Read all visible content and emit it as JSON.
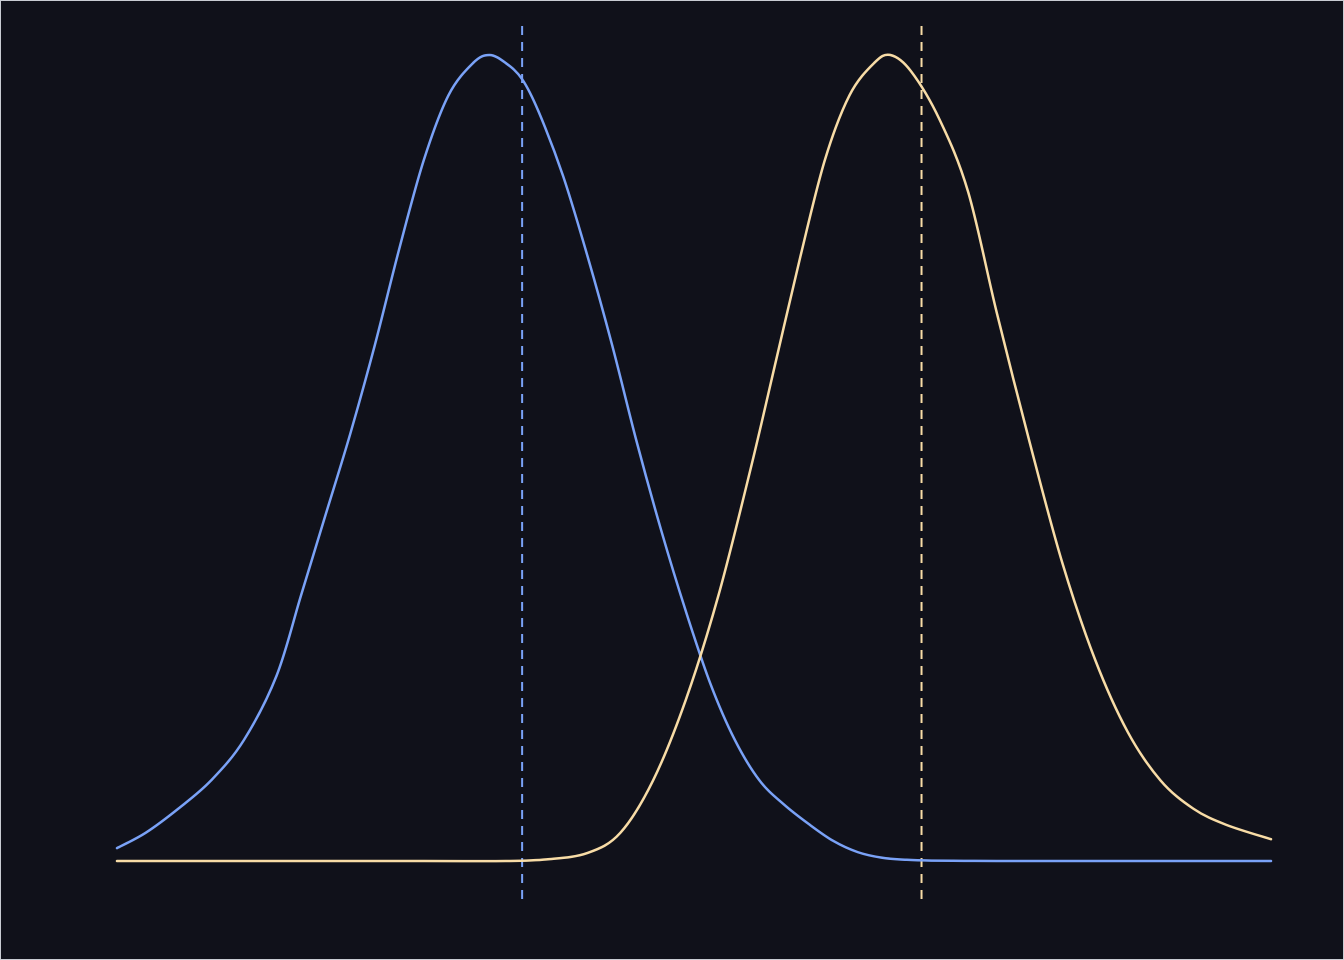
{
  "chart_data": {
    "type": "line",
    "background": "#10111a",
    "grid": false,
    "xlim": [
      -4.75,
      9.35
    ],
    "ylim": [
      0,
      1
    ],
    "series": [
      {
        "color": "#7aa2f7",
        "x": [
          -4.75,
          -4.4,
          -4.0,
          -3.6,
          -3.2,
          -2.8,
          -2.5,
          -2.2,
          -1.9,
          -1.6,
          -1.3,
          -1.0,
          -0.7,
          -0.4,
          -0.2,
          0.0,
          0.2,
          0.4,
          0.7,
          1.0,
          1.3,
          1.6,
          1.9,
          2.2,
          2.5,
          2.8,
          3.1,
          3.4,
          3.7,
          4.0,
          4.3,
          4.6,
          4.9,
          5.2,
          5.6,
          6.0,
          6.5,
          7.0,
          7.5,
          8.0,
          8.5,
          9.35
        ],
        "y": [
          0.016,
          0.035,
          0.065,
          0.1,
          0.15,
          0.23,
          0.33,
          0.43,
          0.53,
          0.64,
          0.76,
          0.87,
          0.95,
          0.99,
          1.0,
          0.99,
          0.97,
          0.93,
          0.85,
          0.75,
          0.64,
          0.52,
          0.41,
          0.31,
          0.22,
          0.15,
          0.1,
          0.07,
          0.046,
          0.025,
          0.011,
          0.004,
          0.0015,
          0.0005,
          0.0002,
          0.0,
          0.0,
          0.0,
          0.0,
          0.0,
          0.0,
          0.0
        ]
      },
      {
        "color": "#f8dca6",
        "x": [
          -4.75,
          -3.0,
          -1.0,
          0.0,
          0.5,
          1.0,
          1.4,
          1.8,
          2.2,
          2.6,
          3.0,
          3.3,
          3.6,
          3.9,
          4.2,
          4.5,
          4.7,
          4.95,
          5.3,
          5.65,
          6.0,
          6.4,
          6.8,
          7.2,
          7.6,
          8.0,
          8.4,
          8.8,
          9.35
        ],
        "y": [
          0.0,
          0.0,
          0.0,
          0.0,
          0.002,
          0.01,
          0.035,
          0.1,
          0.2,
          0.33,
          0.49,
          0.62,
          0.75,
          0.87,
          0.95,
          0.99,
          1.0,
          0.98,
          0.92,
          0.83,
          0.68,
          0.52,
          0.37,
          0.25,
          0.16,
          0.1,
          0.065,
          0.045,
          0.027
        ]
      }
    ],
    "reference_lines": [
      {
        "x": 0.2,
        "color": "#7aa2f7",
        "style": "dashed"
      },
      {
        "x": 5.08,
        "color": "#f8dca6",
        "style": "dashed"
      }
    ]
  }
}
